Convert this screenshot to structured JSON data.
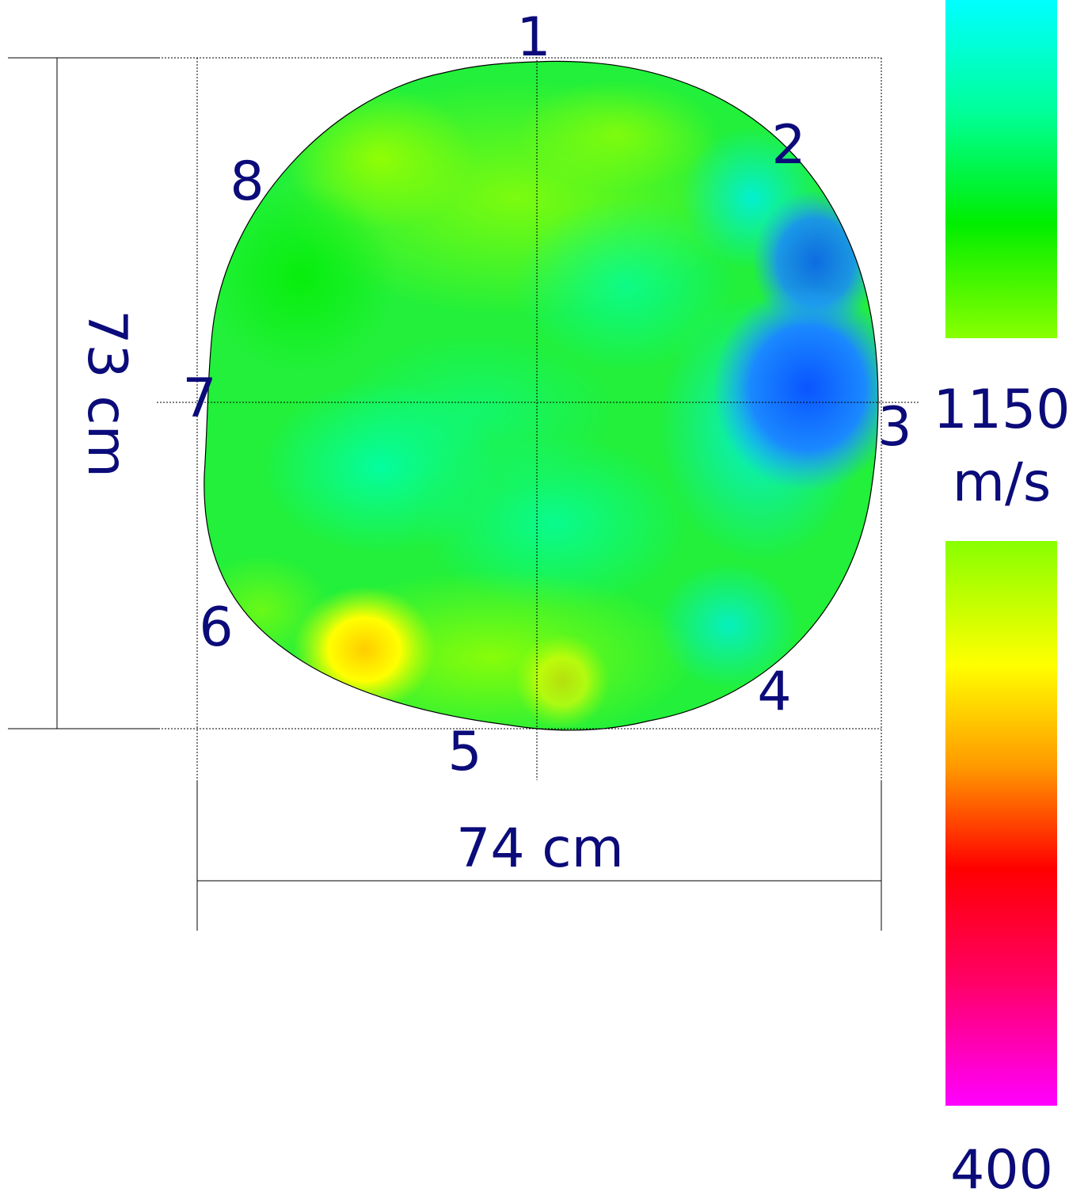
{
  "diagram": {
    "sensor_labels": [
      "1",
      "2",
      "3",
      "4",
      "5",
      "6",
      "7",
      "8"
    ],
    "height_label": "73 cm",
    "width_label": "74 cm",
    "legend": {
      "max_value": "1150",
      "unit": "m/s",
      "min_value": "400",
      "max_numeric": 1150,
      "min_numeric": 400,
      "gradient_upper": [
        "#00ffff",
        "#00ff99",
        "#00ee00",
        "#88ff00"
      ],
      "gradient_lower": [
        "#88ff00",
        "#ffff00",
        "#ff9900",
        "#ff0000",
        "#ff0099",
        "#ff00ff"
      ]
    },
    "colors": {
      "label": "#0b0b7a",
      "outline": "#000000",
      "dimension_line": "#000000"
    }
  }
}
